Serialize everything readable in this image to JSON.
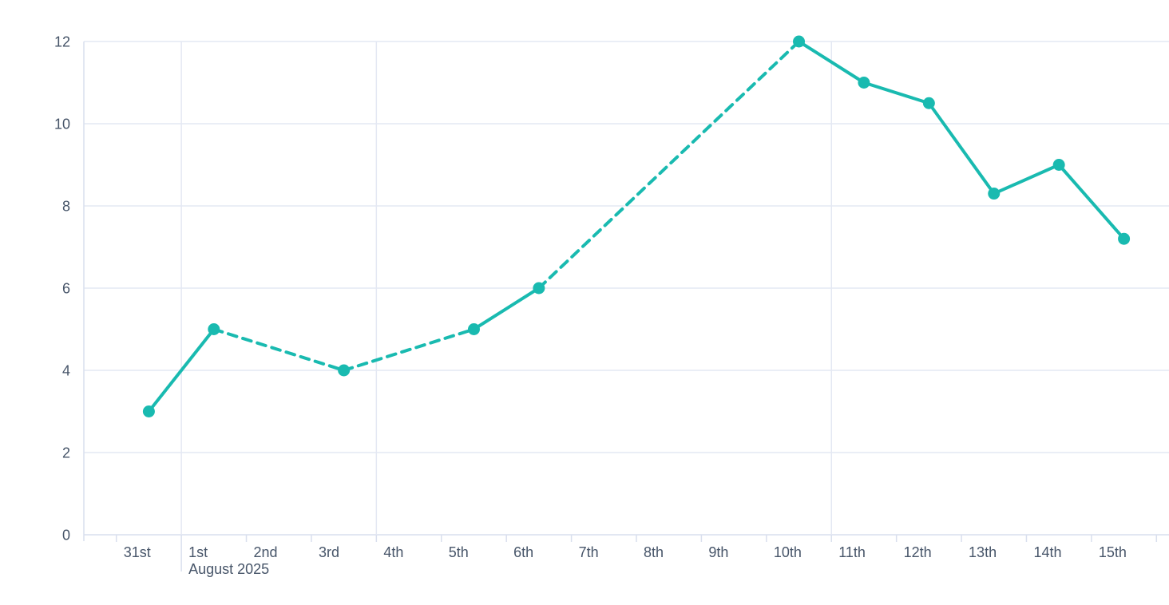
{
  "chart_data": {
    "type": "line",
    "title": "",
    "x_axis": {
      "labels": [
        "31st",
        "1st",
        "2nd",
        "3rd",
        "4th",
        "5th",
        "6th",
        "7th",
        "8th",
        "9th",
        "10th",
        "11th",
        "12th",
        "13th",
        "14th",
        "15th"
      ],
      "month_annotation": {
        "text": "August 2025",
        "at_label_index": 1
      },
      "num_slots": 17,
      "vertical_gridline_boundary_indices": [
        1,
        4,
        11
      ]
    },
    "y_axis": {
      "ticks": [
        0,
        2,
        4,
        6,
        8,
        10,
        12
      ],
      "min": 0,
      "max": 12
    },
    "series": [
      {
        "name": "daily-values",
        "color": "#19bab0",
        "points": [
          {
            "label": "31st",
            "day_index": 0,
            "value": 3,
            "style_to_next": "solid"
          },
          {
            "label": "1st",
            "day_index": 1,
            "value": 5,
            "style_to_next": "dashed"
          },
          {
            "label": "3rd",
            "day_index": 3,
            "value": 4,
            "style_to_next": "dashed"
          },
          {
            "label": "5th",
            "day_index": 5,
            "value": 5,
            "style_to_next": "solid"
          },
          {
            "label": "6th",
            "day_index": 6,
            "value": 6,
            "style_to_next": "dashed"
          },
          {
            "label": "10th",
            "day_index": 10,
            "value": 12,
            "style_to_next": "solid"
          },
          {
            "label": "11th",
            "day_index": 11,
            "value": 11,
            "style_to_next": "solid"
          },
          {
            "label": "12th",
            "day_index": 12,
            "value": 10.5,
            "style_to_next": "solid"
          },
          {
            "label": "13th",
            "day_index": 13,
            "value": 8.3,
            "style_to_next": "solid"
          },
          {
            "label": "14th",
            "day_index": 14,
            "value": 9,
            "style_to_next": "solid"
          },
          {
            "label": "15th",
            "day_index": 15,
            "value": 7.2,
            "style_to_next": null
          }
        ]
      }
    ],
    "legend": null,
    "grid": true,
    "colors": {
      "line": "#19bab0",
      "marker": "#19bab0",
      "gridline": "#e4e8f3",
      "axis_line": "#d9dfee",
      "tick": "#d9dfee",
      "text": "#475569",
      "background": "#ffffff"
    }
  }
}
